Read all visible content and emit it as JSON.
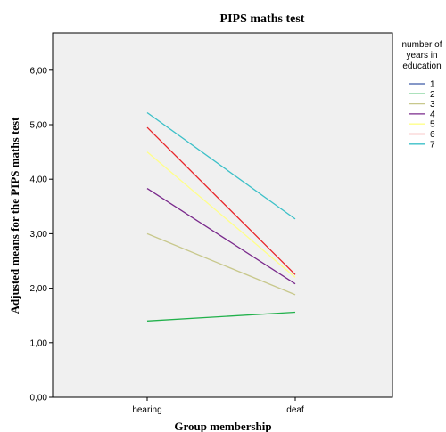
{
  "chart_data": {
    "type": "line",
    "title": "PIPS maths test",
    "xlabel": "Group membership",
    "ylabel": "Adjusted means for the PIPS maths test",
    "categories": [
      "hearing",
      "deaf"
    ],
    "ylim": [
      0,
      6.5
    ],
    "yticks": [
      "0,00",
      "1,00",
      "2,00",
      "3,00",
      "4,00",
      "5,00",
      "6,00"
    ],
    "legend_title": [
      "number of",
      "years in",
      "education"
    ],
    "legend_position": "right",
    "grid": false,
    "plot_background": "#f0f0f0",
    "series": [
      {
        "name": "1",
        "color": "#3d5aa8",
        "values": [
          null,
          null
        ]
      },
      {
        "name": "2",
        "color": "#22b14c",
        "values": [
          1.4,
          1.56
        ]
      },
      {
        "name": "3",
        "color": "#c8c88c",
        "values": [
          3.0,
          1.88
        ]
      },
      {
        "name": "4",
        "color": "#7a2a8c",
        "values": [
          3.83,
          2.08
        ]
      },
      {
        "name": "5",
        "color": "#ffff88",
        "values": [
          4.5,
          2.2
        ]
      },
      {
        "name": "6",
        "color": "#e8262a",
        "values": [
          4.95,
          2.25
        ]
      },
      {
        "name": "7",
        "color": "#3cc0c8",
        "values": [
          5.22,
          3.27
        ]
      }
    ]
  }
}
